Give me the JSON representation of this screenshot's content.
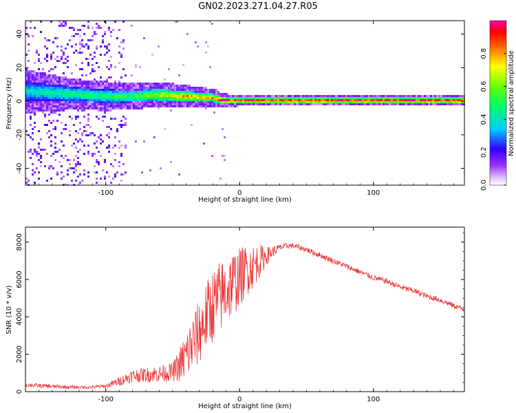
{
  "title": "GN02.2023.271.04.27.R05",
  "colorbar": {
    "label": "Normalized spectral amplitude",
    "ticks": [
      "0.0",
      "0.2",
      "0.4",
      "0.6",
      "0.8"
    ]
  },
  "chart_data": [
    {
      "type": "heatmap",
      "xlabel": "Height of straight line (km)",
      "ylabel": "Frequency (Hz)",
      "xlim": [
        -160,
        168
      ],
      "ylim": [
        -50,
        48
      ],
      "xticks": [
        "-100",
        "0",
        "100"
      ],
      "yticks": [
        "40",
        "20",
        "0",
        "-20",
        "-40"
      ],
      "colorscale": "rainbow (0 = white/violet, 1 = magenta-red)",
      "zlim": [
        0,
        1
      ],
      "ridge": {
        "x": [
          -160,
          -140,
          -120,
          -100,
          -80,
          -60,
          -40,
          -20,
          -12,
          0,
          50,
          100,
          168
        ],
        "center_hz": [
          6,
          5,
          4,
          3,
          3,
          4,
          3,
          2,
          0.5,
          0.5,
          0.5,
          0.5,
          0.5
        ],
        "width_hz": [
          6,
          5,
          4,
          4,
          3.5,
          3.5,
          3,
          2.5,
          1.8,
          1.6,
          1.6,
          1.6,
          1.6
        ],
        "peak_amplitude": [
          0.4,
          0.45,
          0.5,
          0.5,
          0.55,
          0.7,
          0.8,
          0.8,
          0.95,
          0.95,
          0.95,
          0.95,
          0.95
        ]
      },
      "noise_region_x": [
        -160,
        -85
      ]
    },
    {
      "type": "line",
      "xlabel": "Height of straight line (km)",
      "ylabel": "SNR (10 * v/v)",
      "xlim": [
        -160,
        168
      ],
      "ylim": [
        0,
        8800
      ],
      "xticks": [
        "-100",
        "0",
        "100"
      ],
      "yticks": [
        "0",
        "2000",
        "4000",
        "6000",
        "8000"
      ],
      "series": [
        {
          "color": "#ee3333",
          "x": [
            -160,
            -150,
            -140,
            -130,
            -120,
            -110,
            -100,
            -90,
            -80,
            -70,
            -60,
            -50,
            -45,
            -40,
            -35,
            -30,
            -25,
            -20,
            -15,
            -10,
            -5,
            0,
            5,
            10,
            15,
            20,
            25,
            30,
            35,
            40,
            50,
            60,
            70,
            80,
            90,
            100,
            110,
            120,
            130,
            140,
            150,
            160,
            168
          ],
          "y": [
            380,
            320,
            280,
            250,
            230,
            240,
            300,
            550,
            850,
            900,
            950,
            1050,
            1400,
            1900,
            2600,
            3200,
            4000,
            4600,
            5000,
            5400,
            5800,
            6100,
            6500,
            6700,
            7000,
            7250,
            7500,
            7700,
            7800,
            7800,
            7600,
            7300,
            7000,
            6700,
            6400,
            6100,
            5900,
            5600,
            5400,
            5100,
            4900,
            4600,
            4400
          ],
          "noise_amplitude": [
            120,
            110,
            100,
            90,
            80,
            80,
            100,
            250,
            350,
            400,
            450,
            500,
            900,
            1400,
            1600,
            1800,
            1900,
            2000,
            2000,
            1900,
            1800,
            1600,
            1400,
            1200,
            900,
            500,
            300,
            200,
            150,
            150,
            150,
            150,
            150,
            150,
            150,
            150,
            150,
            150,
            150,
            150,
            150,
            150,
            150
          ]
        }
      ]
    }
  ]
}
